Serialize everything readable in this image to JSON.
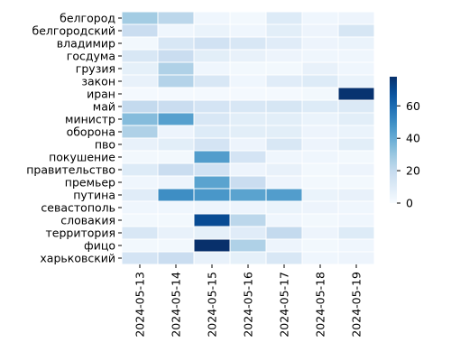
{
  "chart_data": {
    "type": "heatmap",
    "title": "",
    "xlabel": "",
    "ylabel": "",
    "x_categories": [
      "2024-05-13",
      "2024-05-14",
      "2024-05-15",
      "2024-05-16",
      "2024-05-17",
      "2024-05-18",
      "2024-05-19"
    ],
    "y_categories": [
      "белгород",
      "белгородский",
      "владимир",
      "госдума",
      "грузия",
      "закон",
      "иран",
      "май",
      "министр",
      "оборона",
      "пво",
      "покушение",
      "правительство",
      "премьер",
      "путина",
      "севастополь",
      "словакия",
      "территория",
      "фицо",
      "харьковский"
    ],
    "values": [
      [
        28,
        22,
        3,
        2,
        10,
        3,
        4
      ],
      [
        18,
        3,
        5,
        3,
        8,
        4,
        13
      ],
      [
        2,
        12,
        15,
        12,
        9,
        4,
        5
      ],
      [
        12,
        18,
        8,
        6,
        4,
        3,
        3
      ],
      [
        7,
        25,
        3,
        2,
        2,
        6,
        3
      ],
      [
        6,
        24,
        12,
        3,
        9,
        10,
        5
      ],
      [
        1,
        1,
        1,
        1,
        1,
        2,
        77
      ],
      [
        20,
        18,
        14,
        12,
        13,
        10,
        11
      ],
      [
        34,
        44,
        12,
        8,
        8,
        5,
        8
      ],
      [
        25,
        4,
        10,
        8,
        8,
        4,
        5
      ],
      [
        6,
        8,
        14,
        4,
        12,
        4,
        8
      ],
      [
        2,
        2,
        45,
        14,
        3,
        3,
        2
      ],
      [
        10,
        18,
        15,
        4,
        6,
        2,
        4
      ],
      [
        3,
        4,
        43,
        18,
        4,
        2,
        2
      ],
      [
        9,
        50,
        47,
        43,
        45,
        5,
        6
      ],
      [
        3,
        3,
        4,
        4,
        5,
        4,
        3
      ],
      [
        2,
        2,
        70,
        22,
        3,
        2,
        3
      ],
      [
        12,
        6,
        7,
        9,
        20,
        4,
        10
      ],
      [
        2,
        2,
        78,
        25,
        4,
        2,
        3
      ],
      [
        14,
        18,
        6,
        7,
        12,
        3,
        4
      ]
    ],
    "colorscale": "Blues",
    "vmin": 0,
    "vmax": 78,
    "colorbar_ticks": [
      0,
      20,
      40,
      60
    ],
    "colors": {
      "low": "#f7fbff",
      "high": "#08306b"
    }
  }
}
